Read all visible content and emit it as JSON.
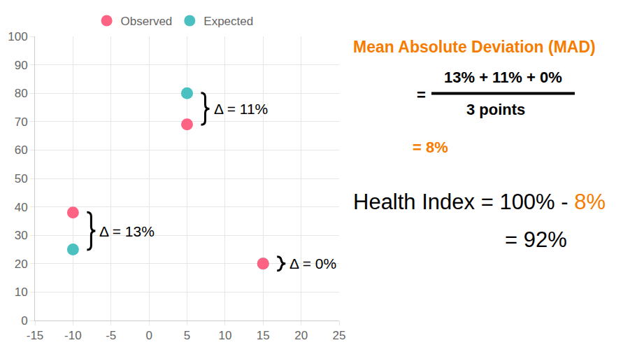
{
  "chart_data": {
    "type": "scatter",
    "series": [
      {
        "name": "Observed",
        "color": "#ff6384",
        "marker": "circle",
        "x": [
          -10,
          5,
          15
        ],
        "values": [
          38,
          69,
          20
        ]
      },
      {
        "name": "Expected",
        "color": "#4bc0c0",
        "marker": "circle",
        "x": [
          -10,
          5,
          15
        ],
        "values": [
          25,
          80,
          20
        ]
      }
    ],
    "xlim": [
      -15,
      25
    ],
    "xticks": [
      -15,
      -10,
      -5,
      0,
      5,
      10,
      15,
      20,
      25
    ],
    "ylim": [
      0,
      100
    ],
    "yticks": [
      0,
      10,
      20,
      30,
      40,
      50,
      60,
      70,
      80,
      90,
      100
    ],
    "grid": true,
    "legend": "top",
    "annotations": [
      {
        "text": "Δ = 13%",
        "value": 13,
        "x": -10,
        "y_from": 38,
        "y_to": 25
      },
      {
        "text": "Δ = 11%",
        "value": 11,
        "x": 5,
        "y_from": 80,
        "y_to": 69
      },
      {
        "text": "Δ = 0%",
        "value": 0,
        "x": 15,
        "y_from": 20,
        "y_to": 20
      }
    ],
    "panel": {
      "title": "Mean Absolute Deviation (MAD)",
      "equals": "=",
      "numerator": "13% + 11% + 0%",
      "denominator": "3 points",
      "result": "= 8%",
      "health_label": "Health Index = 100% - ",
      "health_mad": "8%",
      "health_result": "= 92%"
    }
  }
}
